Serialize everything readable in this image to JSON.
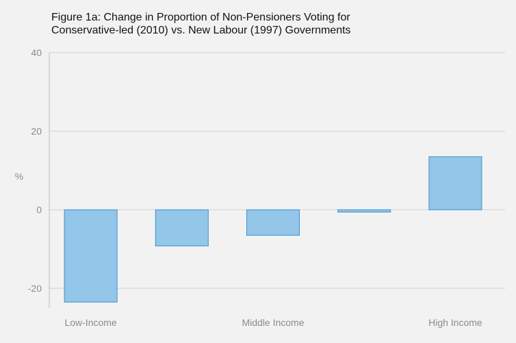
{
  "chart_data": {
    "type": "bar",
    "title_lines": [
      "Figure 1a: Change in Proportion of Non-Pensioners Voting for",
      "Conservative-led (2010) vs. New Labour (1997) Governments"
    ],
    "ylabel": "%",
    "xlabel": "",
    "ylim": [
      -25,
      40
    ],
    "yticks": [
      -20,
      0,
      20,
      40
    ],
    "tick_labels": [
      "-20",
      "0",
      "20",
      "40"
    ],
    "categories": [
      "Low-Income",
      "",
      "Middle Income",
      "",
      "High Income"
    ],
    "values": [
      -23.5,
      -9.2,
      -6.5,
      -0.6,
      13.5
    ],
    "grid": true,
    "legend": "none",
    "colors": {
      "bar_fill": "#93c6e8",
      "bar_stroke": "#3d8fd1",
      "grid": "#d0d0d0",
      "axis": "#bcbcbc",
      "background": "#f2f2f2"
    }
  }
}
